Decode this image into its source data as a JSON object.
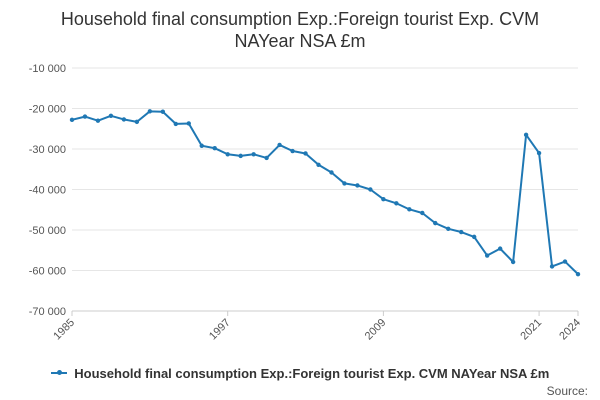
{
  "chart_data": {
    "type": "line",
    "title_lines": [
      "Household final consumption Exp.:Foreign tourist Exp. CVM",
      "NAYear NSA £m"
    ],
    "xlabel": "",
    "ylabel": "",
    "x": [
      1985,
      1986,
      1987,
      1988,
      1989,
      1990,
      1991,
      1992,
      1993,
      1994,
      1995,
      1996,
      1997,
      1998,
      1999,
      2000,
      2001,
      2002,
      2003,
      2004,
      2005,
      2006,
      2007,
      2008,
      2009,
      2010,
      2011,
      2012,
      2013,
      2014,
      2015,
      2016,
      2017,
      2018,
      2019,
      2020,
      2021,
      2022,
      2023,
      2024
    ],
    "series": [
      {
        "name": "Household final consumption Exp.:Foreign tourist Exp. CVM NAYear NSA £m",
        "color": "#1f78b4",
        "values": [
          -22800,
          -22000,
          -23000,
          -21800,
          -22700,
          -23300,
          -20700,
          -20800,
          -23800,
          -23700,
          -29200,
          -29800,
          -31300,
          -31700,
          -31300,
          -32200,
          -29000,
          -30500,
          -31100,
          -33900,
          -35800,
          -38500,
          -39000,
          -40000,
          -42400,
          -43400,
          -44900,
          -45800,
          -48300,
          -49700,
          -50500,
          -51700,
          -56300,
          -54600,
          -57900,
          -26500,
          -31000,
          -59000,
          -57800,
          -60900
        ]
      }
    ],
    "ylim": [
      -70000,
      -10000
    ],
    "y_ticks": [
      -10000,
      -20000,
      -30000,
      -40000,
      -50000,
      -60000,
      -70000
    ],
    "y_tick_labels": [
      "-10 000",
      "-20 000",
      "-30 000",
      "-40 000",
      "-50 000",
      "-60 000",
      "-70 000"
    ],
    "x_tick_labels": [
      "1985",
      "1997",
      "2009",
      "2021",
      "2024"
    ],
    "grid": true,
    "legend_position": "bottom"
  },
  "footer": {
    "source_label": "Source:"
  }
}
